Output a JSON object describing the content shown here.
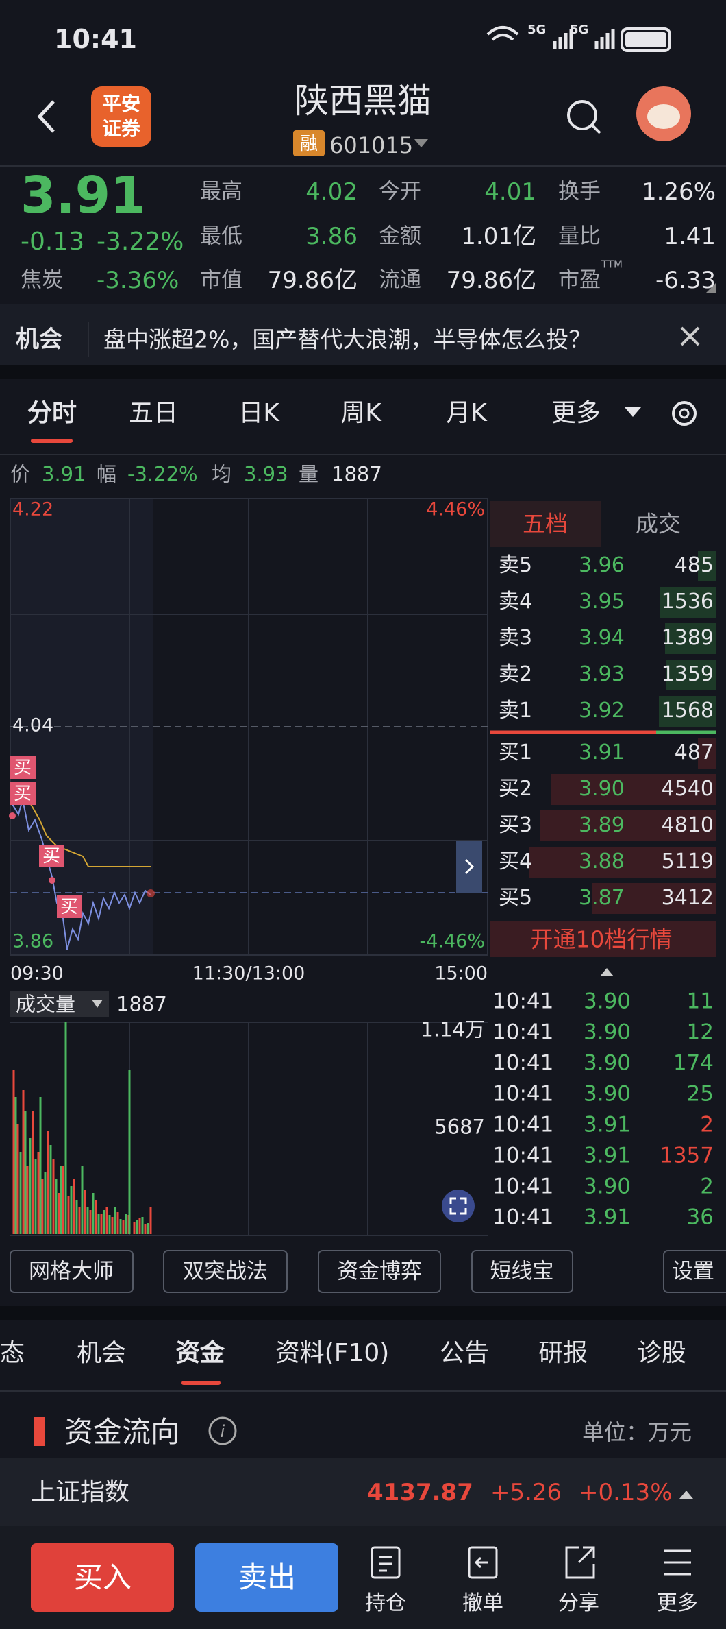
{
  "status_bar": {
    "time": "10:41",
    "network": [
      "5G",
      "5G"
    ]
  },
  "header": {
    "logo": [
      "平安",
      "证券"
    ],
    "title": "陕西黑猫",
    "badge": "融",
    "code": "601015"
  },
  "quote": {
    "price": "3.91",
    "change": "-0.13",
    "change_pct": "-3.22%",
    "sector": "焦炭",
    "sector_pct": "-3.36%",
    "stats": [
      [
        "最高",
        "4.02"
      ],
      [
        "今开",
        "4.01"
      ],
      [
        "换手",
        "1.26%"
      ],
      [
        "最低",
        "3.86"
      ],
      [
        "金额",
        "1.01亿"
      ],
      [
        "量比",
        "1.41"
      ],
      [
        "市值",
        "79.86亿"
      ],
      [
        "流通",
        "79.86亿"
      ],
      [
        "市盈",
        "-6.33"
      ]
    ],
    "pe_sup": "TTM"
  },
  "news": {
    "label": "机会",
    "text": "盘中涨超2%，国产替代大浪潮，半导体怎么投？"
  },
  "chart_tabs": [
    "分时",
    "五日",
    "日K",
    "周K",
    "月K",
    "更多"
  ],
  "summary": [
    [
      "价",
      "3.91"
    ],
    [
      "幅",
      "-3.22%"
    ],
    [
      "均",
      "3.93"
    ],
    [
      "量",
      "1887"
    ]
  ],
  "intraday": {
    "price_high": "4.22",
    "pct_high": "4.46%",
    "price_mid": "4.04",
    "price_low": "3.86",
    "pct_low": "-4.46%",
    "times": [
      "09:30",
      "11:30/13:00",
      "15:00"
    ],
    "buy_marks": [
      "买",
      "买",
      "买",
      "买"
    ],
    "volume_label": "成交量",
    "volume": "1887",
    "vol_max": "1.14万",
    "vol_mid": "5687"
  },
  "order_book": {
    "tabs": [
      "五档",
      "成交"
    ],
    "asks": [
      {
        "label": "卖5",
        "price": "3.96",
        "volume": 485
      },
      {
        "label": "卖4",
        "price": "3.95",
        "volume": 1536
      },
      {
        "label": "卖3",
        "price": "3.94",
        "volume": 1389
      },
      {
        "label": "卖2",
        "price": "3.93",
        "volume": 1359
      },
      {
        "label": "卖1",
        "price": "3.92",
        "volume": 1568
      }
    ],
    "bids": [
      {
        "label": "买1",
        "price": "3.91",
        "volume": 487
      },
      {
        "label": "买2",
        "price": "3.90",
        "volume": 4540
      },
      {
        "label": "买3",
        "price": "3.89",
        "volume": 4810
      },
      {
        "label": "买4",
        "price": "3.88",
        "volume": 5119
      },
      {
        "label": "买5",
        "price": "3.87",
        "volume": 3412
      }
    ],
    "upgrade": "开通10档行情"
  },
  "trades": [
    {
      "time": "10:41",
      "price": "3.90",
      "volume": 11,
      "color": "#4cb860"
    },
    {
      "time": "10:41",
      "price": "3.90",
      "volume": 12,
      "color": "#4cb860"
    },
    {
      "time": "10:41",
      "price": "3.90",
      "volume": 174,
      "color": "#4cb860"
    },
    {
      "time": "10:41",
      "price": "3.90",
      "volume": 25,
      "color": "#4cb860"
    },
    {
      "time": "10:41",
      "price": "3.91",
      "volume": 2,
      "color": "#e8483c"
    },
    {
      "time": "10:41",
      "price": "3.91",
      "volume": 1357,
      "color": "#e8483c"
    },
    {
      "time": "10:41",
      "price": "3.90",
      "volume": 2,
      "color": "#4cb860"
    },
    {
      "time": "10:41",
      "price": "3.91",
      "volume": 36,
      "color": "#4cb860"
    }
  ],
  "tools": [
    "网格大师",
    "双突战法",
    "资金博弈",
    "短线宝",
    "设置"
  ],
  "info_tabs": [
    "动态",
    "机会",
    "资金",
    "资料(F10)",
    "公告",
    "研报",
    "诊股"
  ],
  "fund_flow": {
    "title": "资金流向",
    "unit": "单位：万元"
  },
  "index": {
    "name": "上证指数",
    "value": "4137.87",
    "change": "+5.26",
    "pct": "+0.13%"
  },
  "bottom": {
    "buy": "买入",
    "sell": "卖出",
    "actions": [
      "持仓",
      "撤单",
      "分享",
      "更多"
    ]
  }
}
